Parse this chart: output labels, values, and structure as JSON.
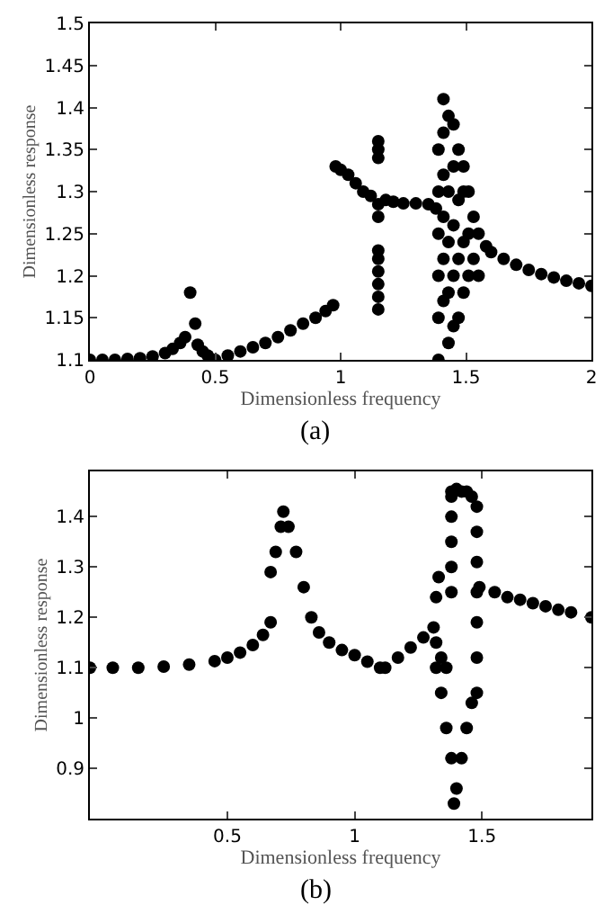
{
  "chart_data": [
    {
      "type": "scatter",
      "xlabel": "Dimensionless frequency",
      "ylabel": "Dimensionless response",
      "xlim": [
        0,
        2
      ],
      "ylim": [
        1.1,
        1.5
      ],
      "xticks": [
        0,
        0.5,
        1,
        1.5,
        2
      ],
      "yticks": [
        1.1,
        1.15,
        1.2,
        1.25,
        1.3,
        1.35,
        1.4,
        1.45,
        1.5
      ],
      "marker": "circle",
      "annotations": [
        "(a)"
      ],
      "series": [
        {
          "color": "#000000",
          "x": [
            0.0,
            0.05,
            0.1,
            0.15,
            0.2,
            0.25,
            0.3,
            0.33,
            0.36,
            0.38,
            0.4,
            0.42,
            0.43,
            0.45,
            0.47,
            0.5,
            0.55,
            0.6,
            0.65,
            0.7,
            0.75,
            0.8,
            0.85,
            0.9,
            0.94,
            0.97,
            0.98,
            1.0,
            1.03,
            1.06,
            1.09,
            1.12,
            1.15,
            1.15,
            1.15,
            1.15,
            1.15,
            1.15,
            1.15,
            1.15,
            1.15,
            1.15,
            1.15,
            1.18,
            1.21,
            1.25,
            1.3,
            1.35,
            1.38,
            1.39,
            1.39,
            1.39,
            1.39,
            1.39,
            1.39,
            1.41,
            1.41,
            1.41,
            1.41,
            1.41,
            1.41,
            1.43,
            1.43,
            1.43,
            1.43,
            1.43,
            1.45,
            1.45,
            1.45,
            1.45,
            1.45,
            1.47,
            1.47,
            1.47,
            1.47,
            1.49,
            1.49,
            1.49,
            1.49,
            1.51,
            1.51,
            1.51,
            1.53,
            1.53,
            1.55,
            1.55,
            1.58,
            1.6,
            1.65,
            1.7,
            1.75,
            1.8,
            1.85,
            1.9,
            1.95,
            2.0
          ],
          "values": [
            1.1,
            1.1,
            1.1,
            1.101,
            1.102,
            1.104,
            1.108,
            1.113,
            1.12,
            1.127,
            1.18,
            1.143,
            1.118,
            1.11,
            1.105,
            1.1,
            1.105,
            1.11,
            1.115,
            1.12,
            1.127,
            1.135,
            1.143,
            1.15,
            1.158,
            1.165,
            1.33,
            1.326,
            1.32,
            1.31,
            1.3,
            1.295,
            1.16,
            1.175,
            1.19,
            1.205,
            1.22,
            1.23,
            1.27,
            1.285,
            1.34,
            1.35,
            1.36,
            1.29,
            1.288,
            1.286,
            1.286,
            1.285,
            1.28,
            1.1,
            1.15,
            1.2,
            1.25,
            1.3,
            1.35,
            1.41,
            1.37,
            1.32,
            1.27,
            1.22,
            1.17,
            1.12,
            1.18,
            1.24,
            1.3,
            1.39,
            1.14,
            1.2,
            1.26,
            1.33,
            1.38,
            1.15,
            1.22,
            1.29,
            1.35,
            1.18,
            1.24,
            1.3,
            1.33,
            1.2,
            1.25,
            1.3,
            1.22,
            1.27,
            1.2,
            1.25,
            1.235,
            1.228,
            1.22,
            1.213,
            1.207,
            1.202,
            1.198,
            1.194,
            1.191,
            1.188
          ]
        }
      ]
    },
    {
      "type": "scatter",
      "xlabel": "Dimensionless frequency",
      "ylabel": "Dimensionless response",
      "xlim": [
        -0.04,
        1.93
      ],
      "ylim": [
        0.8,
        1.49
      ],
      "xticks": [
        0.5,
        1,
        1.5
      ],
      "yticks": [
        0.9,
        1,
        1.1,
        1.2,
        1.3,
        1.4
      ],
      "marker": "circle",
      "annotations": [
        "(b)"
      ],
      "series": [
        {
          "color": "#000000",
          "x": [
            -0.04,
            0.05,
            0.15,
            0.25,
            0.35,
            0.45,
            0.5,
            0.55,
            0.6,
            0.64,
            0.67,
            0.67,
            0.69,
            0.71,
            0.72,
            0.74,
            0.77,
            0.8,
            0.83,
            0.86,
            0.9,
            0.95,
            1.0,
            1.05,
            1.1,
            1.12,
            1.17,
            1.22,
            1.27,
            1.31,
            1.32,
            1.33,
            1.32,
            1.32,
            1.34,
            1.36,
            1.34,
            1.36,
            1.38,
            1.39,
            1.4,
            1.42,
            1.44,
            1.46,
            1.38,
            1.38,
            1.38,
            1.38,
            1.38,
            1.38,
            1.4,
            1.42,
            1.44,
            1.46,
            1.48,
            1.48,
            1.48,
            1.48,
            1.48,
            1.48,
            1.48,
            1.49,
            1.55,
            1.6,
            1.65,
            1.7,
            1.75,
            1.8,
            1.85,
            1.93
          ],
          "values": [
            1.1,
            1.1,
            1.1,
            1.102,
            1.106,
            1.113,
            1.12,
            1.13,
            1.145,
            1.165,
            1.19,
            1.29,
            1.33,
            1.38,
            1.41,
            1.38,
            1.33,
            1.26,
            1.2,
            1.17,
            1.15,
            1.135,
            1.125,
            1.112,
            1.1,
            1.1,
            1.12,
            1.14,
            1.16,
            1.18,
            1.24,
            1.28,
            1.15,
            1.1,
            1.05,
            0.98,
            1.12,
            1.1,
            0.92,
            0.83,
            0.86,
            0.92,
            0.98,
            1.03,
            1.25,
            1.3,
            1.35,
            1.4,
            1.44,
            1.45,
            1.455,
            1.45,
            1.45,
            1.44,
            1.42,
            1.37,
            1.31,
            1.25,
            1.19,
            1.12,
            1.05,
            1.26,
            1.25,
            1.24,
            1.235,
            1.228,
            1.222,
            1.215,
            1.21,
            1.2
          ]
        }
      ]
    }
  ]
}
